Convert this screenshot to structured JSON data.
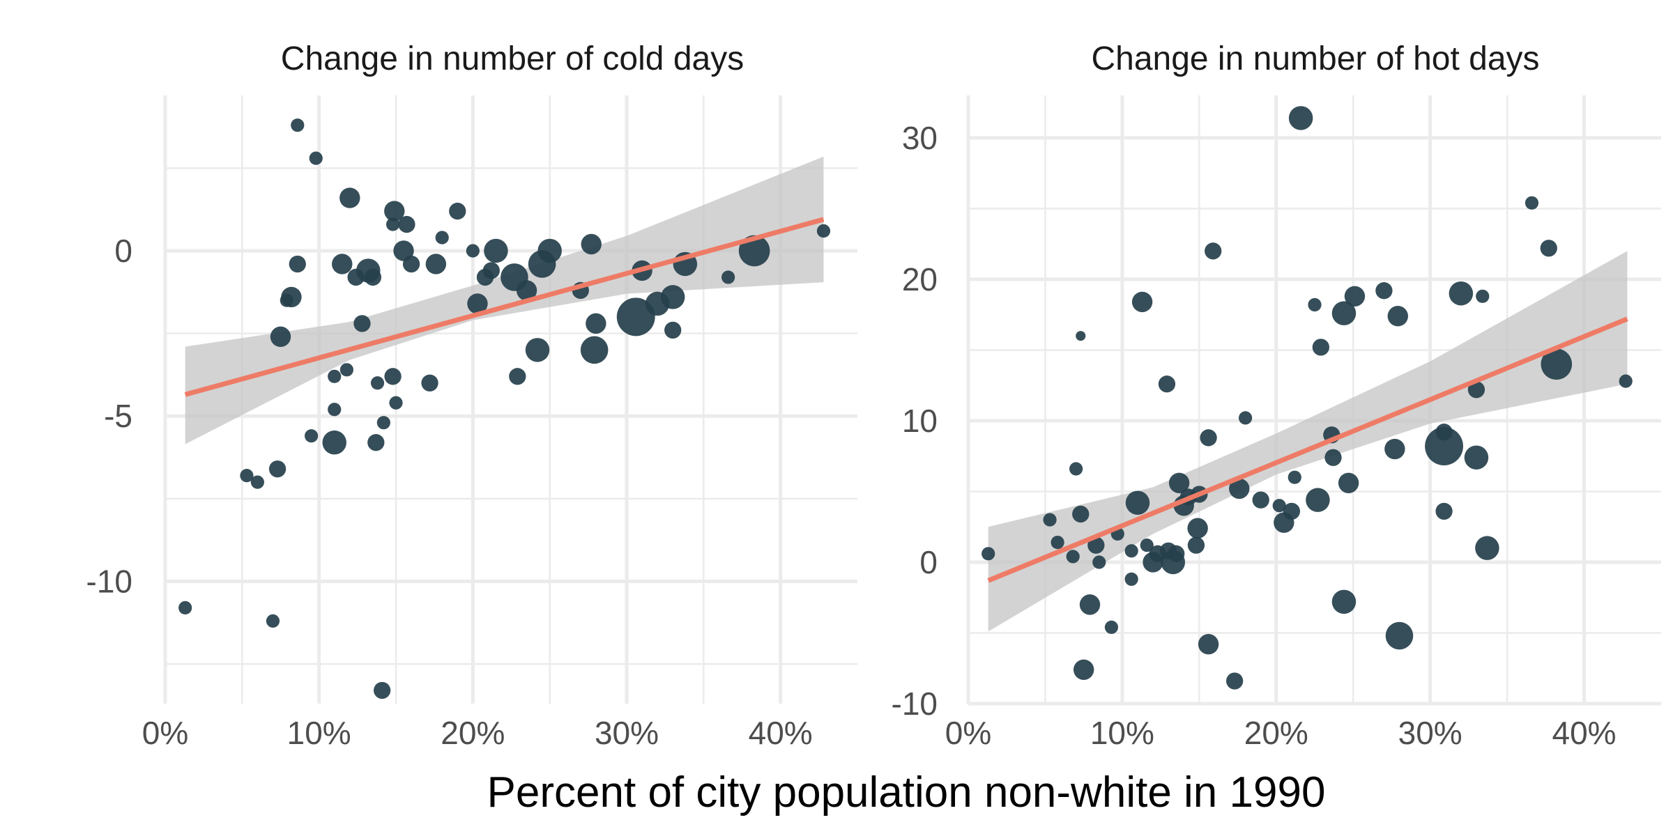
{
  "figure": {
    "xlabel": "Percent of city population non-white in 1990"
  },
  "chart_data": [
    {
      "type": "scatter",
      "title": "Change in number of cold days",
      "xlabel": "Percent of city population non-white in 1990",
      "ylabel": "",
      "xlim": [
        0,
        45
      ],
      "ylim": [
        -13.7,
        4.7
      ],
      "x_major_ticks": [
        0,
        10,
        20,
        30,
        40
      ],
      "x_tick_labels": [
        "0%",
        "10%",
        "20%",
        "30%",
        "40%"
      ],
      "y_major_ticks": [
        -10,
        -5,
        0
      ],
      "y_tick_labels": [
        "-10",
        "-5",
        "0"
      ],
      "y_minor_ticks": [
        -12.5,
        -7.5,
        -2.5,
        2.5
      ],
      "grid": true,
      "point_color": "#253f4b",
      "fit_color": "#ee7b66",
      "band_color": "#c4c4c4",
      "fit": {
        "x": [
          1.3,
          42.8
        ],
        "y": [
          -4.35,
          0.95
        ]
      },
      "confidence_band": {
        "x": [
          1.3,
          12,
          20,
          30,
          42.8
        ],
        "lower": [
          -5.85,
          -3.3,
          -2.1,
          -1.3,
          -0.95
        ],
        "upper": [
          -2.9,
          -2.15,
          -1.05,
          0.45,
          2.85
        ]
      },
      "points": [
        {
          "x": 1.3,
          "y": -10.8,
          "size": 2
        },
        {
          "x": 5.3,
          "y": -6.8,
          "size": 2
        },
        {
          "x": 6,
          "y": -7.0,
          "size": 2
        },
        {
          "x": 7,
          "y": -11.2,
          "size": 2
        },
        {
          "x": 7.3,
          "y": -6.6,
          "size": 3
        },
        {
          "x": 7.5,
          "y": -2.6,
          "size": 4
        },
        {
          "x": 7.9,
          "y": -1.5,
          "size": 2
        },
        {
          "x": 8.2,
          "y": -1.4,
          "size": 4
        },
        {
          "x": 8.6,
          "y": -0.4,
          "size": 3
        },
        {
          "x": 8.6,
          "y": 3.8,
          "size": 2
        },
        {
          "x": 9.5,
          "y": -5.6,
          "size": 2
        },
        {
          "x": 9.8,
          "y": 2.8,
          "size": 2
        },
        {
          "x": 11,
          "y": -3.8,
          "size": 2
        },
        {
          "x": 11,
          "y": -4.8,
          "size": 2
        },
        {
          "x": 11,
          "y": -5.8,
          "size": 5
        },
        {
          "x": 11.5,
          "y": -0.4,
          "size": 4
        },
        {
          "x": 11.8,
          "y": -3.6,
          "size": 2
        },
        {
          "x": 12,
          "y": 1.6,
          "size": 4
        },
        {
          "x": 12.4,
          "y": -0.8,
          "size": 3
        },
        {
          "x": 12.8,
          "y": -2.2,
          "size": 3
        },
        {
          "x": 13.2,
          "y": -0.6,
          "size": 5
        },
        {
          "x": 13.5,
          "y": -0.8,
          "size": 3
        },
        {
          "x": 13.7,
          "y": -5.8,
          "size": 3
        },
        {
          "x": 13.8,
          "y": -4.0,
          "size": 2
        },
        {
          "x": 14.1,
          "y": -13.3,
          "size": 3
        },
        {
          "x": 14.2,
          "y": -5.2,
          "size": 2
        },
        {
          "x": 14.8,
          "y": -3.8,
          "size": 3
        },
        {
          "x": 14.8,
          "y": 0.8,
          "size": 2
        },
        {
          "x": 14.9,
          "y": 1.2,
          "size": 4
        },
        {
          "x": 15,
          "y": -4.6,
          "size": 2
        },
        {
          "x": 15.5,
          "y": 0,
          "size": 4
        },
        {
          "x": 15.7,
          "y": 0.8,
          "size": 3
        },
        {
          "x": 16,
          "y": -0.4,
          "size": 3
        },
        {
          "x": 17.2,
          "y": -4.0,
          "size": 3
        },
        {
          "x": 17.6,
          "y": -0.4,
          "size": 4
        },
        {
          "x": 18,
          "y": 0.4,
          "size": 2
        },
        {
          "x": 19,
          "y": 1.2,
          "size": 3
        },
        {
          "x": 20,
          "y": 0,
          "size": 2
        },
        {
          "x": 20.3,
          "y": -1.6,
          "size": 4
        },
        {
          "x": 20.8,
          "y": -0.8,
          "size": 3
        },
        {
          "x": 21.2,
          "y": -0.6,
          "size": 3
        },
        {
          "x": 21.5,
          "y": 0,
          "size": 5
        },
        {
          "x": 22.7,
          "y": -0.8,
          "size": 6
        },
        {
          "x": 22.9,
          "y": -3.8,
          "size": 3
        },
        {
          "x": 23.5,
          "y": -1.2,
          "size": 4
        },
        {
          "x": 24.2,
          "y": -3.0,
          "size": 5
        },
        {
          "x": 24.5,
          "y": -0.4,
          "size": 6
        },
        {
          "x": 25,
          "y": 0,
          "size": 5
        },
        {
          "x": 27,
          "y": -1.2,
          "size": 3
        },
        {
          "x": 27.7,
          "y": 0.2,
          "size": 4
        },
        {
          "x": 27.9,
          "y": -3.0,
          "size": 6
        },
        {
          "x": 28,
          "y": -2.2,
          "size": 4
        },
        {
          "x": 30.6,
          "y": -2.0,
          "size": 9
        },
        {
          "x": 31,
          "y": -0.6,
          "size": 4
        },
        {
          "x": 32,
          "y": -1.6,
          "size": 5
        },
        {
          "x": 33,
          "y": -1.4,
          "size": 5
        },
        {
          "x": 33,
          "y": -2.4,
          "size": 3
        },
        {
          "x": 33.8,
          "y": -0.4,
          "size": 5
        },
        {
          "x": 36.6,
          "y": -0.8,
          "size": 2
        },
        {
          "x": 38.3,
          "y": 0,
          "size": 7
        },
        {
          "x": 42.8,
          "y": 0.6,
          "size": 2
        }
      ]
    },
    {
      "type": "scatter",
      "title": "Change in number of hot days",
      "xlabel": "Percent of city population non-white in 1990",
      "ylabel": "",
      "xlim": [
        0,
        45
      ],
      "ylim": [
        -10,
        33
      ],
      "x_major_ticks": [
        0,
        10,
        20,
        30,
        40
      ],
      "x_tick_labels": [
        "0%",
        "10%",
        "20%",
        "30%",
        "40%"
      ],
      "y_major_ticks": [
        -10,
        0,
        10,
        20,
        30
      ],
      "y_tick_labels": [
        "-10",
        "0",
        "10",
        "20",
        "30"
      ],
      "y_minor_ticks": [
        -5,
        5,
        15,
        25
      ],
      "grid": true,
      "point_color": "#253f4b",
      "fit_color": "#ee7b66",
      "band_color": "#c4c4c4",
      "fit": {
        "x": [
          1.3,
          42.8
        ],
        "y": [
          -1.3,
          17.2
        ]
      },
      "confidence_band": {
        "x": [
          1.3,
          12,
          20,
          30,
          42.8
        ],
        "lower": [
          -4.9,
          2.0,
          6.2,
          9.8,
          12.6
        ],
        "upper": [
          2.5,
          5.3,
          9.1,
          14.2,
          22.0
        ]
      },
      "points": [
        {
          "x": 1.3,
          "y": 0.6,
          "size": 2
        },
        {
          "x": 5.3,
          "y": 3.0,
          "size": 2
        },
        {
          "x": 5.8,
          "y": 1.4,
          "size": 2
        },
        {
          "x": 6.8,
          "y": 0.4,
          "size": 2
        },
        {
          "x": 7.0,
          "y": 6.6,
          "size": 2
        },
        {
          "x": 7.3,
          "y": 3.4,
          "size": 3
        },
        {
          "x": 7.3,
          "y": 16.0,
          "size": 1
        },
        {
          "x": 7.5,
          "y": -7.6,
          "size": 4
        },
        {
          "x": 7.9,
          "y": -3.0,
          "size": 4
        },
        {
          "x": 8.3,
          "y": 1.2,
          "size": 3
        },
        {
          "x": 8.5,
          "y": 0.0,
          "size": 2
        },
        {
          "x": 9.3,
          "y": -4.6,
          "size": 2
        },
        {
          "x": 9.7,
          "y": 2.0,
          "size": 2
        },
        {
          "x": 10.6,
          "y": -1.2,
          "size": 2
        },
        {
          "x": 10.6,
          "y": 0.8,
          "size": 2
        },
        {
          "x": 11.0,
          "y": 4.2,
          "size": 5
        },
        {
          "x": 11.3,
          "y": 18.4,
          "size": 4
        },
        {
          "x": 11.6,
          "y": 1.2,
          "size": 2
        },
        {
          "x": 12.0,
          "y": 0.0,
          "size": 4
        },
        {
          "x": 12.3,
          "y": 0.6,
          "size": 3
        },
        {
          "x": 12.9,
          "y": 12.6,
          "size": 3
        },
        {
          "x": 13.0,
          "y": 0.8,
          "size": 3
        },
        {
          "x": 13.3,
          "y": 0.0,
          "size": 5
        },
        {
          "x": 13.5,
          "y": 0.6,
          "size": 3
        },
        {
          "x": 13.7,
          "y": 5.6,
          "size": 4
        },
        {
          "x": 14.0,
          "y": 4.0,
          "size": 4
        },
        {
          "x": 14.3,
          "y": 4.6,
          "size": 3
        },
        {
          "x": 14.8,
          "y": 1.2,
          "size": 3
        },
        {
          "x": 14.9,
          "y": 2.4,
          "size": 4
        },
        {
          "x": 15.0,
          "y": 4.8,
          "size": 3
        },
        {
          "x": 15.6,
          "y": -5.8,
          "size": 4
        },
        {
          "x": 15.6,
          "y": 8.8,
          "size": 3
        },
        {
          "x": 15.9,
          "y": 22.0,
          "size": 3
        },
        {
          "x": 17.3,
          "y": -8.4,
          "size": 3
        },
        {
          "x": 17.6,
          "y": 5.2,
          "size": 4
        },
        {
          "x": 18.0,
          "y": 10.2,
          "size": 2
        },
        {
          "x": 19.0,
          "y": 4.4,
          "size": 3
        },
        {
          "x": 20.2,
          "y": 4.0,
          "size": 2
        },
        {
          "x": 20.5,
          "y": 2.8,
          "size": 4
        },
        {
          "x": 21.0,
          "y": 3.6,
          "size": 3
        },
        {
          "x": 21.2,
          "y": 6.0,
          "size": 2
        },
        {
          "x": 21.6,
          "y": 31.4,
          "size": 5
        },
        {
          "x": 22.5,
          "y": 18.2,
          "size": 2
        },
        {
          "x": 22.7,
          "y": 4.4,
          "size": 5
        },
        {
          "x": 22.9,
          "y": 15.2,
          "size": 3
        },
        {
          "x": 23.6,
          "y": 9.0,
          "size": 3
        },
        {
          "x": 23.7,
          "y": 7.4,
          "size": 3
        },
        {
          "x": 24.4,
          "y": -2.8,
          "size": 5
        },
        {
          "x": 24.4,
          "y": 17.6,
          "size": 5
        },
        {
          "x": 24.7,
          "y": 5.6,
          "size": 4
        },
        {
          "x": 25.1,
          "y": 18.8,
          "size": 4
        },
        {
          "x": 27.0,
          "y": 19.2,
          "size": 3
        },
        {
          "x": 27.7,
          "y": 8.0,
          "size": 4
        },
        {
          "x": 27.9,
          "y": 17.4,
          "size": 4
        },
        {
          "x": 28.0,
          "y": -5.2,
          "size": 6
        },
        {
          "x": 30.9,
          "y": 3.6,
          "size": 3
        },
        {
          "x": 30.9,
          "y": 9.2,
          "size": 3
        },
        {
          "x": 30.9,
          "y": 8.2,
          "size": 9
        },
        {
          "x": 32.0,
          "y": 19.0,
          "size": 5
        },
        {
          "x": 33.0,
          "y": 12.2,
          "size": 3
        },
        {
          "x": 33.0,
          "y": 7.4,
          "size": 5
        },
        {
          "x": 33.4,
          "y": 18.8,
          "size": 2
        },
        {
          "x": 33.7,
          "y": 1.0,
          "size": 5
        },
        {
          "x": 36.6,
          "y": 25.4,
          "size": 2
        },
        {
          "x": 37.7,
          "y": 22.2,
          "size": 3
        },
        {
          "x": 38.2,
          "y": 14.0,
          "size": 7
        },
        {
          "x": 42.7,
          "y": 12.8,
          "size": 2
        }
      ]
    }
  ]
}
